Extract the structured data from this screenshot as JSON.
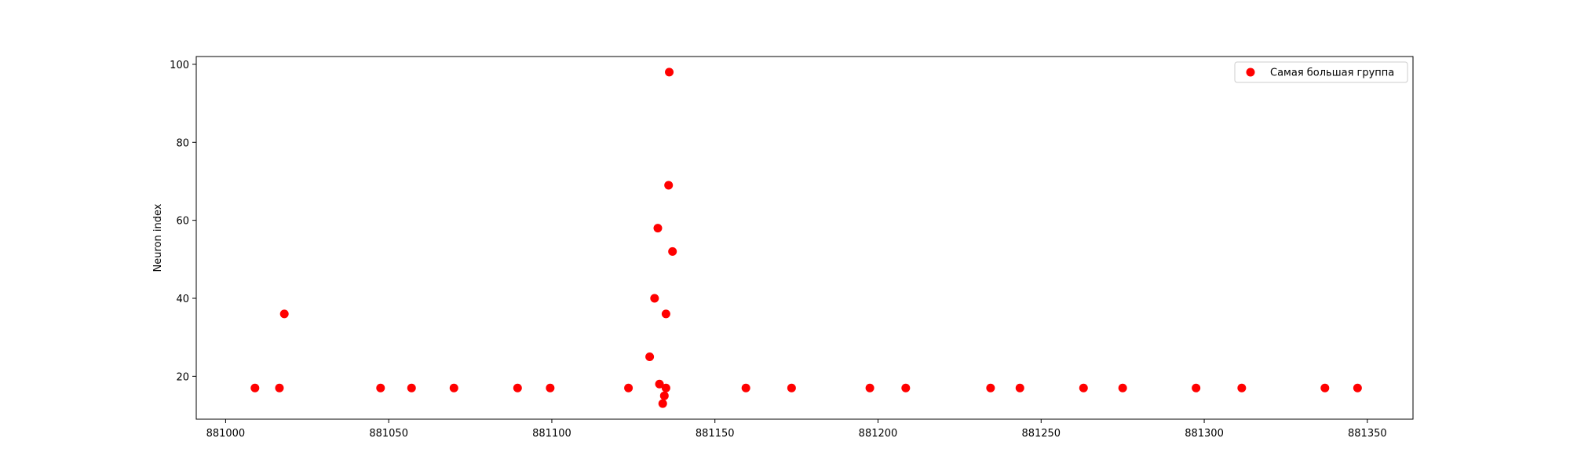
{
  "chart_data": {
    "type": "scatter",
    "title": "",
    "xlabel": "",
    "ylabel": "Neuron index",
    "xlim": [
      880991,
      881364
    ],
    "ylim": [
      9,
      102
    ],
    "xticks": [
      881000,
      881050,
      881100,
      881150,
      881200,
      881250,
      881300,
      881350
    ],
    "yticks": [
      20,
      40,
      60,
      80,
      100
    ],
    "grid": false,
    "legend": {
      "position": "top-right"
    },
    "series": [
      {
        "name": "Самая большая группа",
        "color": "#ff0000",
        "points": [
          {
            "x": 881009,
            "y": 17
          },
          {
            "x": 881016.5,
            "y": 17
          },
          {
            "x": 881018,
            "y": 36
          },
          {
            "x": 881047.5,
            "y": 17
          },
          {
            "x": 881057,
            "y": 17
          },
          {
            "x": 881070,
            "y": 17
          },
          {
            "x": 881089.5,
            "y": 17
          },
          {
            "x": 881099.5,
            "y": 17
          },
          {
            "x": 881123.5,
            "y": 17
          },
          {
            "x": 881130,
            "y": 25
          },
          {
            "x": 881131.5,
            "y": 40
          },
          {
            "x": 881132.5,
            "y": 58
          },
          {
            "x": 881133,
            "y": 18
          },
          {
            "x": 881134,
            "y": 13
          },
          {
            "x": 881134.5,
            "y": 15
          },
          {
            "x": 881135,
            "y": 36
          },
          {
            "x": 881135,
            "y": 17
          },
          {
            "x": 881135.8,
            "y": 69
          },
          {
            "x": 881136,
            "y": 98
          },
          {
            "x": 881137,
            "y": 52
          },
          {
            "x": 881159.5,
            "y": 17
          },
          {
            "x": 881173.5,
            "y": 17
          },
          {
            "x": 881197.5,
            "y": 17
          },
          {
            "x": 881208.5,
            "y": 17
          },
          {
            "x": 881234.5,
            "y": 17
          },
          {
            "x": 881243.5,
            "y": 17
          },
          {
            "x": 881263,
            "y": 17
          },
          {
            "x": 881275,
            "y": 17
          },
          {
            "x": 881297.5,
            "y": 17
          },
          {
            "x": 881311.5,
            "y": 17
          },
          {
            "x": 881337,
            "y": 17
          },
          {
            "x": 881347,
            "y": 17
          }
        ]
      }
    ]
  }
}
